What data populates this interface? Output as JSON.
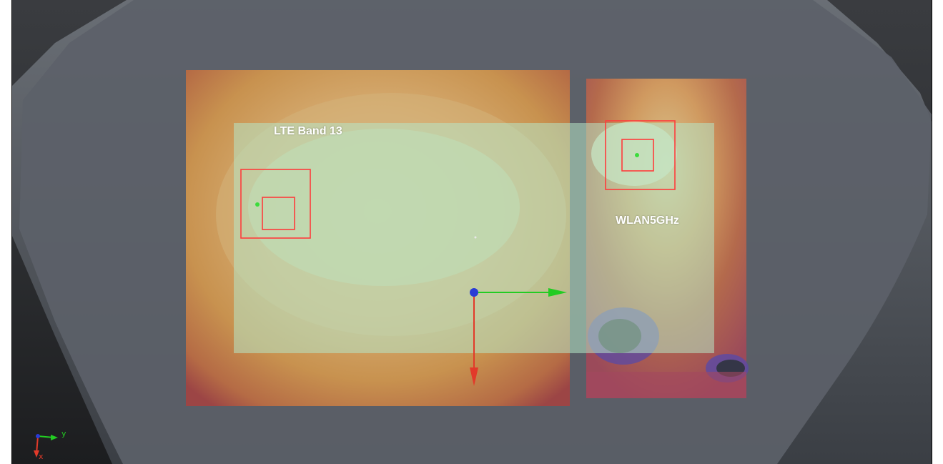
{
  "viewport": {
    "background": "#2f3134",
    "phantom_color": "#5a5f66"
  },
  "annotations": {
    "lte_label": "LTE Band 13",
    "wlan_label": "WLAN5GHz"
  },
  "axes_triad": {
    "y_label": "y",
    "x_label": "x"
  },
  "colors": {
    "heatmap_warm": "#c6864a",
    "heatmap_hot": "#9a3e3a",
    "heatmap_cool": "#cda07a",
    "overlay": "#b8e6c4",
    "marker_box": "#ff3b3b",
    "x_axis": "#e23a2a",
    "y_axis": "#22cc22",
    "origin": "#2a3bd6"
  }
}
